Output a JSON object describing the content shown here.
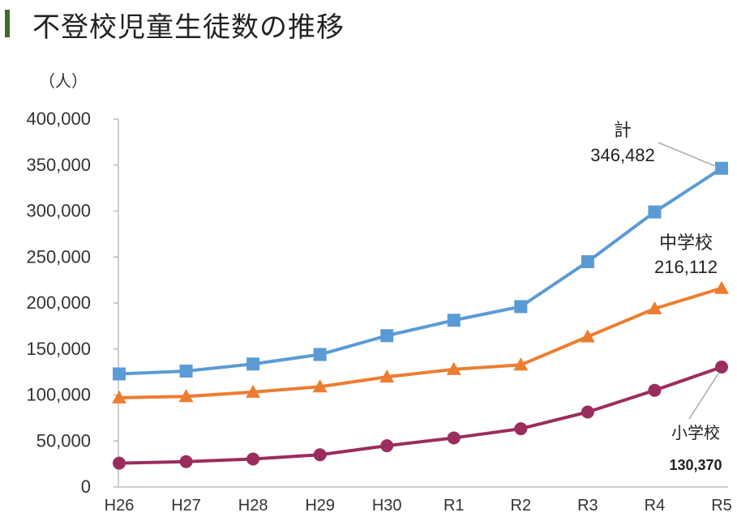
{
  "title": "不登校児童生徒数の推移",
  "unit_label": "（人）",
  "chart_data": {
    "type": "line",
    "categories": [
      "H26",
      "H27",
      "H28",
      "H29",
      "H30",
      "R1",
      "R2",
      "R3",
      "R4",
      "R5"
    ],
    "yticks": [
      "0",
      "50,000",
      "100,000",
      "150,000",
      "200,000",
      "250,000",
      "300,000",
      "350,000",
      "400,000"
    ],
    "ylim": [
      0,
      400000
    ],
    "series": [
      {
        "name": "計",
        "marker": "square",
        "color": "#5b9bd5",
        "values": [
          122902,
          126009,
          133683,
          144031,
          164528,
          181272,
          196127,
          244940,
          299048,
          346482
        ]
      },
      {
        "name": "中学校",
        "marker": "triangle",
        "color": "#ed7d31",
        "values": [
          97033,
          98408,
          103235,
          108999,
          119687,
          127922,
          132777,
          163442,
          193936,
          216112
        ]
      },
      {
        "name": "小学校",
        "marker": "circle",
        "color": "#9b2d5e",
        "values": [
          25864,
          27583,
          30448,
          35032,
          44841,
          53350,
          63350,
          81498,
          105112,
          130370
        ]
      }
    ],
    "annotations": [
      {
        "series": "計",
        "label": "計",
        "value_text": "346,482"
      },
      {
        "series": "中学校",
        "label": "中学校",
        "value_text": "216,112"
      },
      {
        "series": "小学校",
        "label": "小学校",
        "value_text": "130,370"
      }
    ]
  }
}
